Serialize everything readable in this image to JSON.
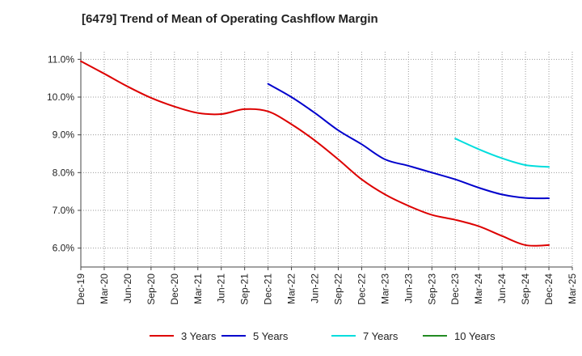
{
  "chart_data": {
    "type": "line",
    "title": "[6479]  Trend of Mean of Operating Cashflow Margin",
    "xlabel": "",
    "ylabel": "",
    "ylim": [
      5.5,
      11.2
    ],
    "y_ticks": [
      6.0,
      7.0,
      8.0,
      9.0,
      10.0,
      11.0
    ],
    "y_tick_labels": [
      "6.0%",
      "7.0%",
      "8.0%",
      "9.0%",
      "10.0%",
      "11.0%"
    ],
    "x_tick_labels": [
      "Dec-19",
      "Mar-20",
      "Jun-20",
      "Sep-20",
      "Dec-20",
      "Mar-21",
      "Jun-21",
      "Sep-21",
      "Dec-21",
      "Mar-22",
      "Jun-22",
      "Sep-22",
      "Dec-22",
      "Mar-23",
      "Jun-23",
      "Sep-23",
      "Dec-23",
      "Mar-24",
      "Jun-24",
      "Sep-24",
      "Dec-24",
      "Mar-25"
    ],
    "grid": true,
    "legend_position": "bottom",
    "series": [
      {
        "name": "3 Years",
        "color": "#dd0000",
        "start_index": 0,
        "values": [
          10.95,
          10.62,
          10.28,
          9.98,
          9.75,
          9.58,
          9.55,
          9.68,
          9.62,
          9.28,
          8.85,
          8.35,
          7.82,
          7.42,
          7.12,
          6.88,
          6.75,
          6.58,
          6.32,
          6.08,
          6.08
        ]
      },
      {
        "name": "5 Years",
        "color": "#0000cc",
        "start_index": 8,
        "values": [
          10.35,
          10.0,
          9.58,
          9.12,
          8.75,
          8.35,
          8.18,
          8.0,
          7.82,
          7.6,
          7.42,
          7.33,
          7.32
        ]
      },
      {
        "name": "7 Years",
        "color": "#00dddd",
        "start_index": 16,
        "values": [
          8.9,
          8.62,
          8.38,
          8.2,
          8.15
        ]
      },
      {
        "name": "10 Years",
        "color": "#228b22",
        "start_index": 0,
        "values": []
      }
    ]
  }
}
